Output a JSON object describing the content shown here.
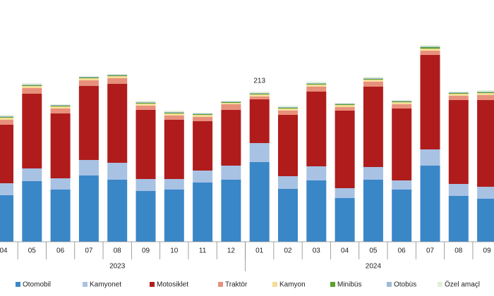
{
  "chart_data": {
    "type": "stacked-bar",
    "groups": [
      {
        "label": "2023",
        "categories": [
          "04",
          "05",
          "06",
          "07",
          "08",
          "09",
          "10",
          "11",
          "12"
        ]
      },
      {
        "label": "2024",
        "categories": [
          "01",
          "02",
          "03",
          "04",
          "05",
          "06",
          "07",
          "08",
          "09"
        ]
      }
    ],
    "ylim": [
      0,
      280
    ],
    "series": [
      {
        "name": "Otomobil",
        "color": "#3a87c8",
        "values": [
          66,
          86,
          74,
          94,
          88,
          72,
          74,
          84,
          88,
          113,
          75,
          87,
          62,
          88,
          74,
          108,
          65,
          61
        ]
      },
      {
        "name": "Kamyonet",
        "color": "#a8c2e4",
        "values": [
          17,
          18,
          16,
          22,
          24,
          17,
          15,
          17,
          20,
          27,
          18,
          20,
          14,
          18,
          13,
          23,
          17,
          17
        ]
      },
      {
        "name": "Motosiklet",
        "color": "#b01c1c",
        "values": [
          83,
          106,
          92,
          105,
          112,
          98,
          84,
          70,
          79,
          62,
          87,
          106,
          110,
          114,
          102,
          134,
          119,
          123
        ]
      },
      {
        "name": "Traktör",
        "color": "#e8907c",
        "values": [
          7,
          8,
          7,
          8,
          8,
          6,
          6,
          6,
          8,
          4,
          6,
          7,
          5,
          7,
          6,
          6,
          6,
          7
        ]
      },
      {
        "name": "Kamyon",
        "color": "#f3dc98",
        "values": [
          3,
          3,
          3,
          3,
          3,
          3,
          3,
          3,
          2,
          3,
          3,
          3,
          3,
          3,
          3,
          3,
          3,
          3
        ]
      },
      {
        "name": "Minibüs",
        "color": "#5aa02c",
        "values": [
          1,
          1,
          1,
          1,
          1,
          1,
          1,
          1,
          1,
          1,
          1,
          1,
          1,
          1,
          1,
          2,
          1,
          1
        ]
      },
      {
        "name": "Otobüs",
        "color": "#9dbbd6",
        "values": [
          1,
          1,
          1,
          1,
          1,
          1,
          1,
          1,
          1,
          1,
          1,
          1,
          1,
          1,
          1,
          1,
          1,
          1
        ]
      },
      {
        "name": "Özel amaçl",
        "color": "#e4eed6",
        "values": [
          2,
          2,
          1,
          1,
          1,
          2,
          2,
          1,
          1,
          2,
          2,
          2,
          1,
          2,
          1,
          2,
          1,
          2
        ]
      }
    ],
    "totals": [
      null,
      null,
      null,
      null,
      null,
      null,
      null,
      null,
      null,
      213,
      null,
      null,
      null,
      null,
      null,
      null,
      null,
      null
    ]
  }
}
